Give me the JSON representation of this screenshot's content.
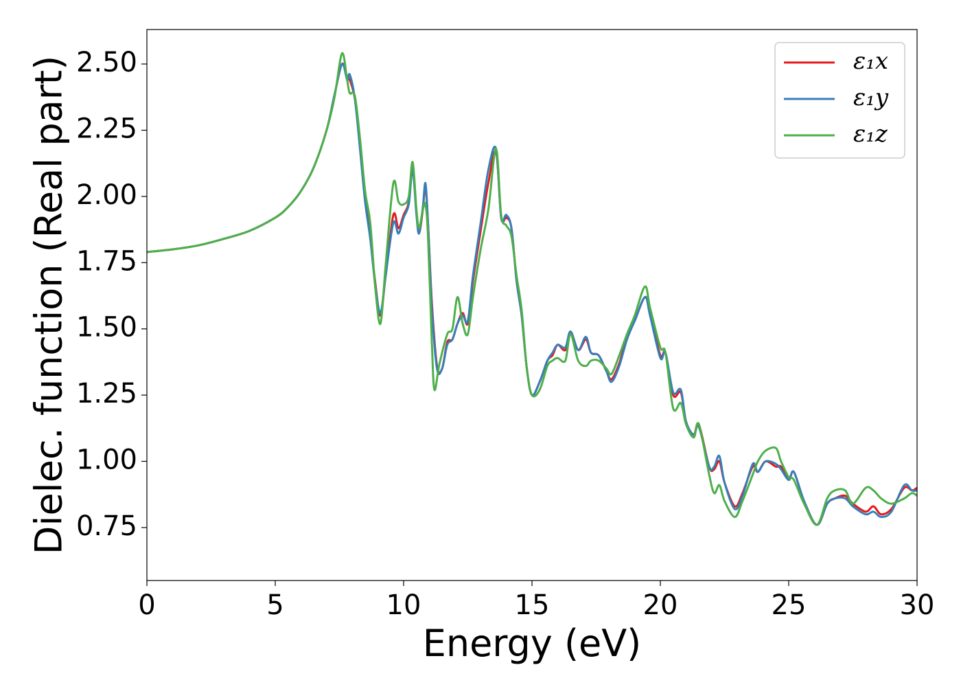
{
  "chart_data": {
    "type": "line",
    "xlabel": "Energy (eV)",
    "ylabel": "Dielec. function (Real part)",
    "xlim": [
      0,
      30
    ],
    "ylim": [
      0.55,
      2.63
    ],
    "xticks": [
      0,
      5,
      10,
      15,
      20,
      25,
      30
    ],
    "xtick_labels": [
      "0",
      "5",
      "10",
      "15",
      "20",
      "25",
      "30"
    ],
    "yticks": [
      0.75,
      1.0,
      1.25,
      1.5,
      1.75,
      2.0,
      2.25,
      2.5
    ],
    "ytick_labels": [
      "0.75",
      "1.00",
      "1.25",
      "1.50",
      "1.75",
      "2.00",
      "2.25",
      "2.50"
    ],
    "grid": false,
    "legend_position": "top-right",
    "series": [
      {
        "name": "ε₁x",
        "color": "#e41a1c",
        "points": [
          [
            0,
            1.79
          ],
          [
            1,
            1.8
          ],
          [
            2,
            1.815
          ],
          [
            3,
            1.84
          ],
          [
            4,
            1.87
          ],
          [
            5,
            1.92
          ],
          [
            5.5,
            1.96
          ],
          [
            6,
            2.02
          ],
          [
            6.5,
            2.11
          ],
          [
            7,
            2.25
          ],
          [
            7.3,
            2.38
          ],
          [
            7.6,
            2.5
          ],
          [
            7.8,
            2.45
          ],
          [
            7.9,
            2.44
          ],
          [
            8.1,
            2.37
          ],
          [
            8.3,
            2.2
          ],
          [
            8.5,
            2.0
          ],
          [
            8.7,
            1.85
          ],
          [
            8.9,
            1.67
          ],
          [
            9.1,
            1.55
          ],
          [
            9.3,
            1.7
          ],
          [
            9.6,
            1.93
          ],
          [
            9.8,
            1.88
          ],
          [
            10.0,
            1.93
          ],
          [
            10.2,
            1.98
          ],
          [
            10.35,
            2.12
          ],
          [
            10.5,
            1.94
          ],
          [
            10.6,
            1.86
          ],
          [
            10.75,
            1.95
          ],
          [
            10.85,
            2.04
          ],
          [
            10.95,
            1.9
          ],
          [
            11.1,
            1.6
          ],
          [
            11.3,
            1.36
          ],
          [
            11.5,
            1.35
          ],
          [
            11.7,
            1.45
          ],
          [
            11.9,
            1.46
          ],
          [
            12.1,
            1.52
          ],
          [
            12.3,
            1.56
          ],
          [
            12.5,
            1.52
          ],
          [
            12.7,
            1.68
          ],
          [
            13.0,
            1.87
          ],
          [
            13.3,
            2.05
          ],
          [
            13.6,
            2.17
          ],
          [
            13.8,
            1.92
          ],
          [
            14.0,
            1.92
          ],
          [
            14.2,
            1.88
          ],
          [
            14.4,
            1.68
          ],
          [
            14.6,
            1.55
          ],
          [
            14.8,
            1.35
          ],
          [
            15.0,
            1.25
          ],
          [
            15.3,
            1.3
          ],
          [
            15.6,
            1.38
          ],
          [
            15.8,
            1.4
          ],
          [
            16.0,
            1.44
          ],
          [
            16.3,
            1.42
          ],
          [
            16.5,
            1.49
          ],
          [
            16.8,
            1.42
          ],
          [
            17.1,
            1.46
          ],
          [
            17.3,
            1.41
          ],
          [
            17.6,
            1.4
          ],
          [
            17.9,
            1.34
          ],
          [
            18.1,
            1.31
          ],
          [
            18.4,
            1.37
          ],
          [
            18.7,
            1.47
          ],
          [
            19.0,
            1.53
          ],
          [
            19.4,
            1.62
          ],
          [
            19.6,
            1.56
          ],
          [
            20.0,
            1.4
          ],
          [
            20.2,
            1.41
          ],
          [
            20.5,
            1.25
          ],
          [
            20.8,
            1.26
          ],
          [
            21.0,
            1.15
          ],
          [
            21.3,
            1.1
          ],
          [
            21.5,
            1.14
          ],
          [
            21.9,
            0.98
          ],
          [
            22.1,
            0.97
          ],
          [
            22.3,
            1.0
          ],
          [
            22.5,
            0.92
          ],
          [
            22.9,
            0.83
          ],
          [
            23.2,
            0.88
          ],
          [
            23.6,
            0.98
          ],
          [
            23.8,
            0.96
          ],
          [
            24.1,
            1.0
          ],
          [
            24.5,
            0.98
          ],
          [
            24.7,
            0.98
          ],
          [
            25.0,
            0.93
          ],
          [
            25.2,
            0.96
          ],
          [
            25.6,
            0.85
          ],
          [
            26.1,
            0.76
          ],
          [
            26.5,
            0.84
          ],
          [
            26.8,
            0.86
          ],
          [
            27.2,
            0.87
          ],
          [
            27.5,
            0.84
          ],
          [
            28.0,
            0.81
          ],
          [
            28.3,
            0.83
          ],
          [
            28.6,
            0.8
          ],
          [
            29.0,
            0.82
          ],
          [
            29.5,
            0.9
          ],
          [
            29.8,
            0.89
          ],
          [
            30,
            0.9
          ]
        ]
      },
      {
        "name": "ε₁y",
        "color": "#377eb8",
        "points": [
          [
            0,
            1.79
          ],
          [
            1,
            1.8
          ],
          [
            2,
            1.815
          ],
          [
            3,
            1.84
          ],
          [
            4,
            1.87
          ],
          [
            5,
            1.92
          ],
          [
            5.5,
            1.96
          ],
          [
            6,
            2.02
          ],
          [
            6.5,
            2.11
          ],
          [
            7,
            2.25
          ],
          [
            7.3,
            2.38
          ],
          [
            7.6,
            2.5
          ],
          [
            7.8,
            2.44
          ],
          [
            7.9,
            2.46
          ],
          [
            8.1,
            2.37
          ],
          [
            8.3,
            2.18
          ],
          [
            8.5,
            1.98
          ],
          [
            8.7,
            1.84
          ],
          [
            8.9,
            1.66
          ],
          [
            9.1,
            1.56
          ],
          [
            9.3,
            1.7
          ],
          [
            9.6,
            1.9
          ],
          [
            9.8,
            1.86
          ],
          [
            10.0,
            1.92
          ],
          [
            10.2,
            1.97
          ],
          [
            10.35,
            2.1
          ],
          [
            10.5,
            1.93
          ],
          [
            10.6,
            1.86
          ],
          [
            10.75,
            1.96
          ],
          [
            10.85,
            2.05
          ],
          [
            10.95,
            1.9
          ],
          [
            11.1,
            1.58
          ],
          [
            11.3,
            1.35
          ],
          [
            11.5,
            1.35
          ],
          [
            11.7,
            1.44
          ],
          [
            11.9,
            1.46
          ],
          [
            12.1,
            1.52
          ],
          [
            12.3,
            1.55
          ],
          [
            12.5,
            1.53
          ],
          [
            12.7,
            1.7
          ],
          [
            13.0,
            1.9
          ],
          [
            13.3,
            2.1
          ],
          [
            13.6,
            2.18
          ],
          [
            13.8,
            1.92
          ],
          [
            14.0,
            1.93
          ],
          [
            14.2,
            1.88
          ],
          [
            14.4,
            1.68
          ],
          [
            14.6,
            1.55
          ],
          [
            14.8,
            1.35
          ],
          [
            15.0,
            1.25
          ],
          [
            15.3,
            1.3
          ],
          [
            15.6,
            1.38
          ],
          [
            15.8,
            1.41
          ],
          [
            16.0,
            1.44
          ],
          [
            16.3,
            1.43
          ],
          [
            16.5,
            1.49
          ],
          [
            16.8,
            1.42
          ],
          [
            17.1,
            1.47
          ],
          [
            17.3,
            1.41
          ],
          [
            17.6,
            1.4
          ],
          [
            17.9,
            1.34
          ],
          [
            18.1,
            1.3
          ],
          [
            18.4,
            1.36
          ],
          [
            18.7,
            1.46
          ],
          [
            19.0,
            1.53
          ],
          [
            19.4,
            1.62
          ],
          [
            19.6,
            1.55
          ],
          [
            20.0,
            1.39
          ],
          [
            20.2,
            1.41
          ],
          [
            20.5,
            1.26
          ],
          [
            20.8,
            1.27
          ],
          [
            21.0,
            1.15
          ],
          [
            21.3,
            1.1
          ],
          [
            21.5,
            1.13
          ],
          [
            21.9,
            0.98
          ],
          [
            22.1,
            0.98
          ],
          [
            22.3,
            1.02
          ],
          [
            22.5,
            0.92
          ],
          [
            22.9,
            0.82
          ],
          [
            23.2,
            0.87
          ],
          [
            23.6,
            0.99
          ],
          [
            23.8,
            0.96
          ],
          [
            24.1,
            1.0
          ],
          [
            24.5,
            0.99
          ],
          [
            24.7,
            0.97
          ],
          [
            25.0,
            0.93
          ],
          [
            25.2,
            0.96
          ],
          [
            25.6,
            0.85
          ],
          [
            26.1,
            0.76
          ],
          [
            26.5,
            0.84
          ],
          [
            26.8,
            0.86
          ],
          [
            27.2,
            0.86
          ],
          [
            27.5,
            0.83
          ],
          [
            28.0,
            0.8
          ],
          [
            28.3,
            0.81
          ],
          [
            28.6,
            0.79
          ],
          [
            29.0,
            0.81
          ],
          [
            29.5,
            0.91
          ],
          [
            29.8,
            0.89
          ],
          [
            30,
            0.89
          ]
        ]
      },
      {
        "name": "ε₁z",
        "color": "#4daf4a",
        "points": [
          [
            0,
            1.79
          ],
          [
            1,
            1.8
          ],
          [
            2,
            1.815
          ],
          [
            3,
            1.84
          ],
          [
            4,
            1.87
          ],
          [
            5,
            1.92
          ],
          [
            5.5,
            1.96
          ],
          [
            6,
            2.02
          ],
          [
            6.5,
            2.11
          ],
          [
            7,
            2.25
          ],
          [
            7.3,
            2.37
          ],
          [
            7.6,
            2.54
          ],
          [
            7.8,
            2.44
          ],
          [
            7.9,
            2.39
          ],
          [
            8.1,
            2.38
          ],
          [
            8.3,
            2.22
          ],
          [
            8.5,
            2.02
          ],
          [
            8.7,
            1.9
          ],
          [
            8.9,
            1.65
          ],
          [
            9.1,
            1.52
          ],
          [
            9.3,
            1.74
          ],
          [
            9.6,
            2.05
          ],
          [
            9.8,
            1.98
          ],
          [
            10.0,
            1.97
          ],
          [
            10.2,
            2.0
          ],
          [
            10.35,
            2.13
          ],
          [
            10.5,
            1.95
          ],
          [
            10.6,
            1.88
          ],
          [
            10.75,
            1.95
          ],
          [
            10.85,
            1.97
          ],
          [
            10.95,
            1.85
          ],
          [
            11.1,
            1.45
          ],
          [
            11.2,
            1.27
          ],
          [
            11.4,
            1.37
          ],
          [
            11.7,
            1.48
          ],
          [
            11.9,
            1.5
          ],
          [
            12.1,
            1.62
          ],
          [
            12.3,
            1.52
          ],
          [
            12.5,
            1.48
          ],
          [
            12.7,
            1.62
          ],
          [
            13.0,
            1.8
          ],
          [
            13.3,
            1.95
          ],
          [
            13.6,
            2.18
          ],
          [
            13.8,
            1.93
          ],
          [
            14.0,
            1.89
          ],
          [
            14.2,
            1.85
          ],
          [
            14.4,
            1.7
          ],
          [
            14.6,
            1.57
          ],
          [
            14.8,
            1.35
          ],
          [
            15.0,
            1.25
          ],
          [
            15.3,
            1.27
          ],
          [
            15.6,
            1.36
          ],
          [
            15.8,
            1.38
          ],
          [
            16.0,
            1.39
          ],
          [
            16.3,
            1.38
          ],
          [
            16.5,
            1.48
          ],
          [
            16.8,
            1.38
          ],
          [
            17.1,
            1.36
          ],
          [
            17.3,
            1.38
          ],
          [
            17.6,
            1.38
          ],
          [
            17.9,
            1.35
          ],
          [
            18.1,
            1.33
          ],
          [
            18.4,
            1.4
          ],
          [
            18.7,
            1.48
          ],
          [
            19.0,
            1.55
          ],
          [
            19.4,
            1.66
          ],
          [
            19.6,
            1.58
          ],
          [
            20.0,
            1.43
          ],
          [
            20.2,
            1.41
          ],
          [
            20.5,
            1.2
          ],
          [
            20.8,
            1.22
          ],
          [
            21.0,
            1.14
          ],
          [
            21.3,
            1.09
          ],
          [
            21.5,
            1.14
          ],
          [
            21.9,
            0.95
          ],
          [
            22.1,
            0.88
          ],
          [
            22.3,
            0.91
          ],
          [
            22.5,
            0.85
          ],
          [
            22.9,
            0.79
          ],
          [
            23.2,
            0.85
          ],
          [
            23.6,
            0.95
          ],
          [
            23.8,
            1.0
          ],
          [
            24.1,
            1.04
          ],
          [
            24.5,
            1.05
          ],
          [
            24.7,
            1.0
          ],
          [
            25.0,
            0.94
          ],
          [
            25.2,
            0.93
          ],
          [
            25.6,
            0.84
          ],
          [
            26.1,
            0.76
          ],
          [
            26.5,
            0.86
          ],
          [
            26.8,
            0.89
          ],
          [
            27.2,
            0.89
          ],
          [
            27.5,
            0.84
          ],
          [
            28.0,
            0.9
          ],
          [
            28.3,
            0.89
          ],
          [
            28.6,
            0.86
          ],
          [
            29.0,
            0.84
          ],
          [
            29.5,
            0.86
          ],
          [
            29.8,
            0.88
          ],
          [
            30,
            0.87
          ]
        ]
      }
    ]
  }
}
